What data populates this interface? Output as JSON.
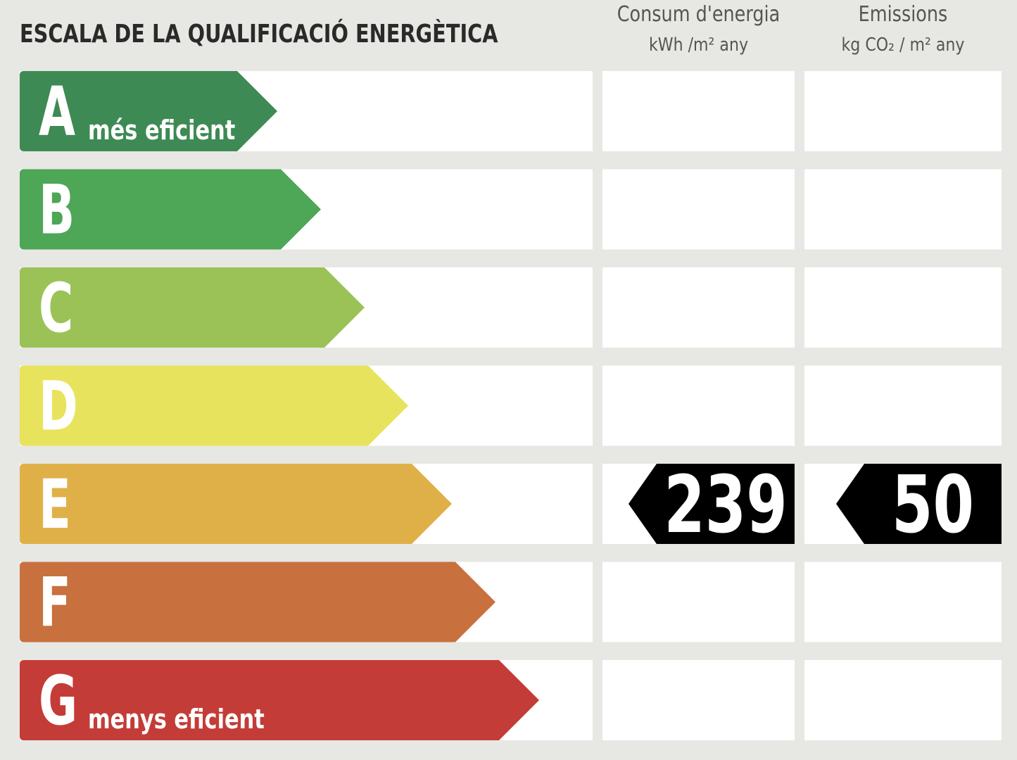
{
  "title": "ESCALA DE LA QUALIFICACIÓ ENERGÈTICA",
  "columns": [
    {
      "title": "Consum d'energia",
      "unit": "kWh /m² any"
    },
    {
      "title": "Emissions",
      "unit": "kg CO₂ / m² any"
    }
  ],
  "rows": [
    {
      "letter": "A",
      "note": "més eficient",
      "color": "#3e8a54"
    },
    {
      "letter": "B",
      "color": "#4ea657"
    },
    {
      "letter": "C",
      "color": "#9bc257"
    },
    {
      "letter": "D",
      "color": "#e8e35c"
    },
    {
      "letter": "E",
      "color": "#e0b048",
      "values": [
        239,
        50
      ]
    },
    {
      "letter": "F",
      "color": "#c8703e"
    },
    {
      "letter": "G",
      "note": "menys eficient",
      "color": "#c43c37"
    }
  ]
}
